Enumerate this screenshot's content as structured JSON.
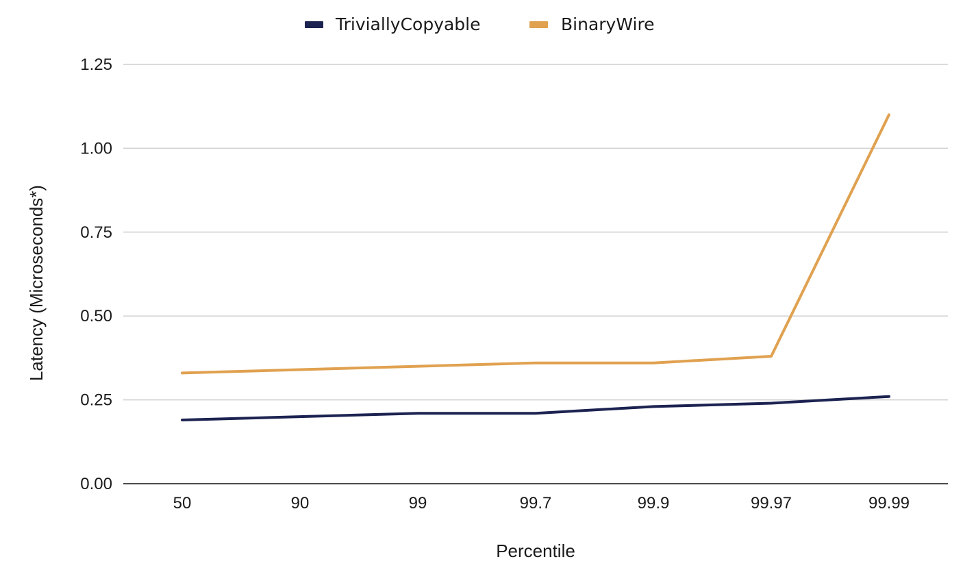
{
  "chart_data": {
    "type": "line",
    "title": "",
    "xlabel": "Percentile",
    "ylabel": "Latency (Microseconds*)",
    "categories": [
      "50",
      "90",
      "99",
      "99.7",
      "99.9",
      "99.97",
      "99.99"
    ],
    "ylim": [
      0,
      1.25
    ],
    "yticks": [
      "0.00",
      "0.25",
      "0.50",
      "0.75",
      "1.00",
      "1.25"
    ],
    "ytick_values": [
      0,
      0.25,
      0.5,
      0.75,
      1.0,
      1.25
    ],
    "grid": true,
    "legend_position": "top-center",
    "series": [
      {
        "name": "TriviallyCopyable",
        "color": "#1c2351",
        "values": [
          0.19,
          0.2,
          0.21,
          0.21,
          0.23,
          0.24,
          0.26
        ]
      },
      {
        "name": "BinaryWire",
        "color": "#e0a150",
        "values": [
          0.33,
          0.34,
          0.35,
          0.36,
          0.36,
          0.38,
          1.1
        ]
      }
    ]
  }
}
